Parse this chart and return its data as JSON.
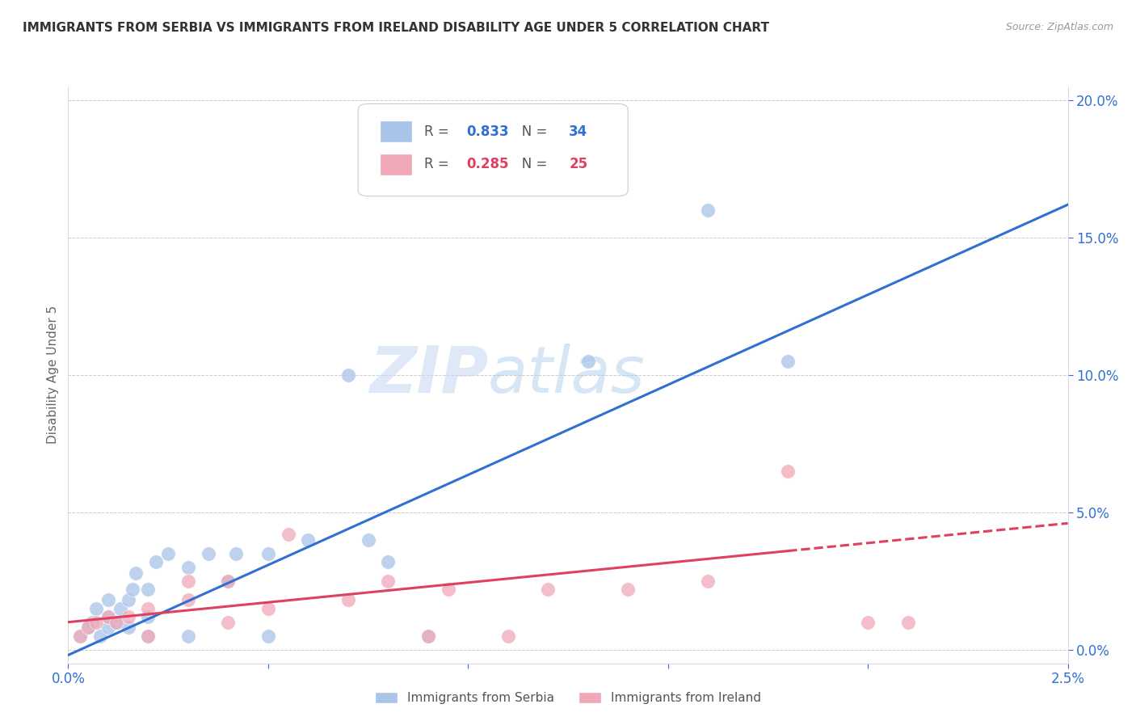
{
  "title": "IMMIGRANTS FROM SERBIA VS IMMIGRANTS FROM IRELAND DISABILITY AGE UNDER 5 CORRELATION CHART",
  "source": "Source: ZipAtlas.com",
  "ylabel": "Disability Age Under 5",
  "serbia_R": 0.833,
  "serbia_N": 34,
  "ireland_R": 0.285,
  "ireland_N": 25,
  "serbia_color": "#a8c4e8",
  "ireland_color": "#f0a8b8",
  "serbia_line_color": "#3070d0",
  "ireland_line_color": "#e04060",
  "serbia_scatter_x": [
    0.0003,
    0.0005,
    0.0006,
    0.0007,
    0.0008,
    0.001,
    0.001,
    0.001,
    0.0012,
    0.0013,
    0.0015,
    0.0015,
    0.0016,
    0.0017,
    0.002,
    0.002,
    0.002,
    0.0022,
    0.0025,
    0.003,
    0.003,
    0.0035,
    0.004,
    0.0042,
    0.005,
    0.005,
    0.006,
    0.007,
    0.0075,
    0.008,
    0.009,
    0.013,
    0.016,
    0.018
  ],
  "serbia_scatter_y": [
    0.005,
    0.008,
    0.01,
    0.015,
    0.005,
    0.008,
    0.012,
    0.018,
    0.01,
    0.015,
    0.008,
    0.018,
    0.022,
    0.028,
    0.005,
    0.012,
    0.022,
    0.032,
    0.035,
    0.005,
    0.03,
    0.035,
    0.025,
    0.035,
    0.005,
    0.035,
    0.04,
    0.1,
    0.04,
    0.032,
    0.005,
    0.105,
    0.16,
    0.105
  ],
  "ireland_scatter_x": [
    0.0003,
    0.0005,
    0.0007,
    0.001,
    0.0012,
    0.0015,
    0.002,
    0.002,
    0.003,
    0.003,
    0.004,
    0.004,
    0.005,
    0.0055,
    0.007,
    0.008,
    0.009,
    0.0095,
    0.011,
    0.012,
    0.014,
    0.016,
    0.018,
    0.02,
    0.021
  ],
  "ireland_scatter_y": [
    0.005,
    0.008,
    0.01,
    0.012,
    0.01,
    0.012,
    0.005,
    0.015,
    0.018,
    0.025,
    0.01,
    0.025,
    0.015,
    0.042,
    0.018,
    0.025,
    0.005,
    0.022,
    0.005,
    0.022,
    0.022,
    0.025,
    0.065,
    0.01,
    0.01
  ],
  "xlim": [
    0.0,
    0.025
  ],
  "ylim": [
    -0.005,
    0.205
  ],
  "plot_ylim": [
    0.0,
    0.2
  ],
  "right_yticks": [
    0.0,
    0.05,
    0.1,
    0.15,
    0.2
  ],
  "right_yticklabels": [
    "0.0%",
    "5.0%",
    "10.0%",
    "15.0%",
    "20.0%"
  ],
  "serbia_regline_x": [
    0.0,
    0.025
  ],
  "serbia_regline_y": [
    -0.002,
    0.162
  ],
  "ireland_regline_x": [
    0.0,
    0.025
  ],
  "ireland_regline_y": [
    0.01,
    0.046
  ],
  "watermark_zip": "ZIP",
  "watermark_atlas": "atlas",
  "background_color": "#ffffff",
  "grid_color": "#cccccc",
  "title_color": "#333333",
  "source_color": "#999999",
  "axis_color": "#3070d0",
  "label_color": "#666666"
}
